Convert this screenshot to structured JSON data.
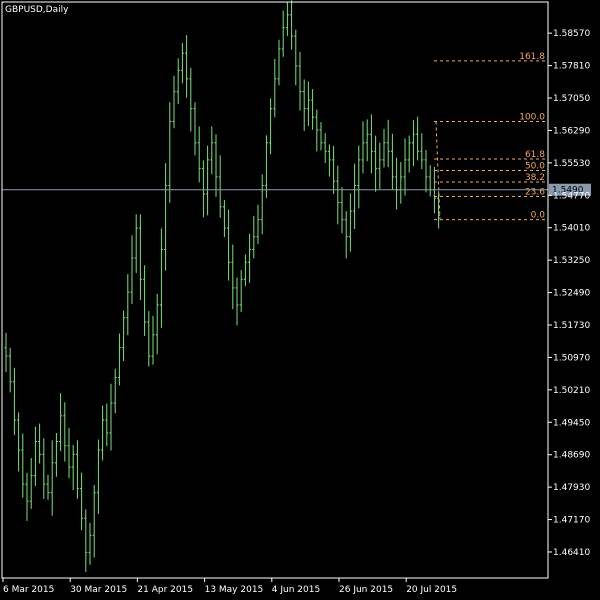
{
  "colors": {
    "background": "#000000",
    "frame": "#ffffff",
    "bars": "#7ee07e",
    "fibo": "#f0a860",
    "price_line": "#8a9bb0",
    "price_box_bg": "#8a9bb0",
    "price_box_text": "#000000",
    "text": "#ffffff"
  },
  "chart_data": {
    "type": "bar",
    "title": "GBPUSD,Daily",
    "symbol": "GBPUSD",
    "timeframe": "Daily",
    "ylim": [
      1.458,
      1.593
    ],
    "grid": false,
    "y_ticks": [
      "1.58570",
      "1.57810",
      "1.57050",
      "1.56290",
      "1.55530",
      "1.54770",
      "1.54010",
      "1.53250",
      "1.52490",
      "1.51730",
      "1.50970",
      "1.50210",
      "1.49450",
      "1.48690",
      "1.47930",
      "1.47170",
      "1.46410"
    ],
    "x_ticks": [
      {
        "label": "6 Mar 2015",
        "index": 0
      },
      {
        "label": "30 Mar 2015",
        "index": 16
      },
      {
        "label": "21 Apr 2015",
        "index": 32
      },
      {
        "label": "13 May 2015",
        "index": 48
      },
      {
        "label": "4 Jun 2015",
        "index": 64
      },
      {
        "label": "26 Jun 2015",
        "index": 80
      },
      {
        "label": "20 Jul 2015",
        "index": 96
      }
    ],
    "current_price": 1.549,
    "current_price_label": "1.5490",
    "closes": [
      1.51,
      1.504,
      1.495,
      1.488,
      1.48,
      1.476,
      1.482,
      1.49,
      1.487,
      1.48,
      1.478,
      1.485,
      1.49,
      1.496,
      1.489,
      1.484,
      1.487,
      1.479,
      1.472,
      1.464,
      1.468,
      1.478,
      1.488,
      1.495,
      1.492,
      1.499,
      1.505,
      1.512,
      1.519,
      1.525,
      1.533,
      1.54,
      1.528,
      1.518,
      1.51,
      1.515,
      1.522,
      1.535,
      1.55,
      1.565,
      1.572,
      1.577,
      1.581,
      1.575,
      1.568,
      1.56,
      1.554,
      1.548,
      1.556,
      1.56,
      1.552,
      1.545,
      1.54,
      1.532,
      1.526,
      1.522,
      1.528,
      1.532,
      1.535,
      1.538,
      1.542,
      1.55,
      1.56,
      1.568,
      1.575,
      1.582,
      1.587,
      1.59,
      1.585,
      1.578,
      1.572,
      1.568,
      1.57,
      1.566,
      1.563,
      1.56,
      1.558,
      1.556,
      1.551,
      1.546,
      1.542,
      1.538,
      1.544,
      1.55,
      1.556,
      1.56,
      1.562,
      1.558,
      1.554,
      1.556,
      1.56,
      1.558,
      1.552,
      1.549,
      1.552,
      1.556,
      1.56,
      1.562,
      1.558,
      1.556,
      1.552,
      1.549,
      1.547,
      1.543
    ],
    "fibonacci": {
      "high": 1.565,
      "low": 1.542,
      "levels": [
        {
          "label": "161.8",
          "value": 1.5792
        },
        {
          "label": "100.0",
          "value": 1.565
        },
        {
          "label": "61.8",
          "value": 1.5562
        },
        {
          "label": "50.0",
          "value": 1.5535
        },
        {
          "label": "38.2",
          "value": 1.5508
        },
        {
          "label": "23.6",
          "value": 1.5474
        },
        {
          "label": "0.0",
          "value": 1.542
        }
      ]
    }
  }
}
